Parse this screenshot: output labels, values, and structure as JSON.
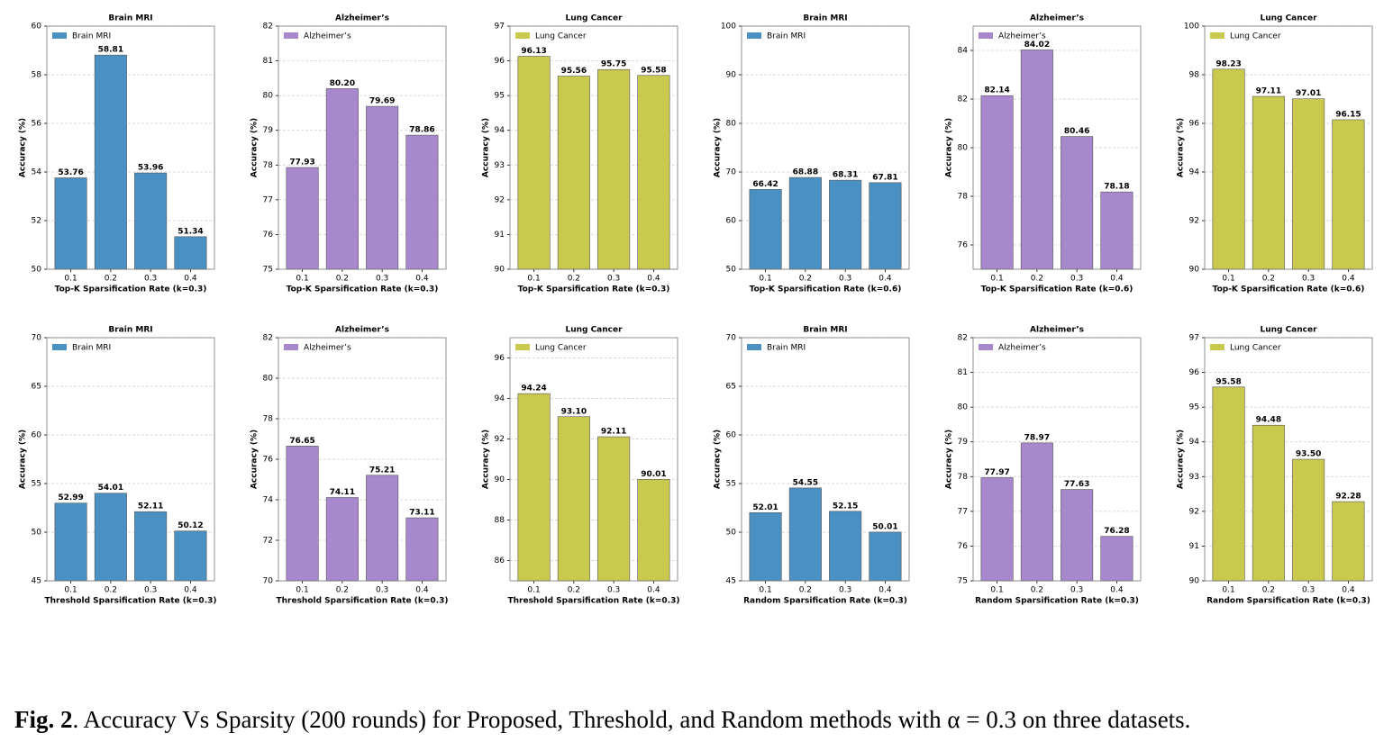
{
  "chart_data": [
    {
      "type": "bar",
      "title": "Brain MRI",
      "xlabel": "Top-K Sparsification Rate (k=0.3)",
      "ylabel": "Accuracy (%)",
      "categories": [
        "0.1",
        "0.2",
        "0.3",
        "0.4"
      ],
      "series": [
        {
          "name": "Brain MRI",
          "color": "#4a90c2",
          "values": [
            53.76,
            58.81,
            53.96,
            51.34
          ],
          "value_labels": [
            "53.76",
            "58.81",
            "53.96",
            "51.34"
          ]
        }
      ],
      "ylim": [
        50,
        60
      ],
      "yticks": [
        50,
        52,
        54,
        56,
        58,
        60
      ],
      "grid": true,
      "legend": "upper left"
    },
    {
      "type": "bar",
      "title": "Alzheimer’s",
      "xlabel": "Top-K Sparsification Rate (k=0.3)",
      "ylabel": "Accuracy (%)",
      "categories": [
        "0.1",
        "0.2",
        "0.3",
        "0.4"
      ],
      "series": [
        {
          "name": "Alzheimer’s",
          "color": "#a888cc",
          "values": [
            77.93,
            80.2,
            79.69,
            78.86
          ],
          "value_labels": [
            "77.93",
            "80.20",
            "79.69",
            "78.86"
          ]
        }
      ],
      "ylim": [
        75,
        82
      ],
      "yticks": [
        75,
        76,
        77,
        78,
        79,
        80,
        81,
        82
      ],
      "grid": true,
      "legend": "upper left"
    },
    {
      "type": "bar",
      "title": "Lung Cancer",
      "xlabel": "Top-K Sparsification Rate (k=0.3)",
      "ylabel": "Accuracy (%)",
      "categories": [
        "0.1",
        "0.2",
        "0.3",
        "0.4"
      ],
      "series": [
        {
          "name": "Lung Cancer",
          "color": "#c9c94e",
          "values": [
            96.13,
            95.56,
            95.75,
            95.58
          ],
          "value_labels": [
            "96.13",
            "95.56",
            "95.75",
            "95.58"
          ]
        }
      ],
      "ylim": [
        90,
        97
      ],
      "yticks": [
        90,
        91,
        92,
        93,
        94,
        95,
        96,
        97
      ],
      "grid": true,
      "legend": "upper left"
    },
    {
      "type": "bar",
      "title": "Brain MRI",
      "xlabel": "Top-K Sparsification Rate (k=0.6)",
      "ylabel": "Accuracy (%)",
      "categories": [
        "0.1",
        "0.2",
        "0.3",
        "0.4"
      ],
      "series": [
        {
          "name": "Brain MRI",
          "color": "#4a90c2",
          "values": [
            66.42,
            68.88,
            68.31,
            67.81
          ],
          "value_labels": [
            "66.42",
            "68.88",
            "68.31",
            "67.81"
          ]
        }
      ],
      "ylim": [
        50,
        100
      ],
      "yticks": [
        50,
        60,
        70,
        80,
        90,
        100
      ],
      "grid": true,
      "legend": "upper left"
    },
    {
      "type": "bar",
      "title": "Alzheimer’s",
      "xlabel": "Top-K Sparsification Rate (k=0.6)",
      "ylabel": "Accuracy (%)",
      "categories": [
        "0.1",
        "0.2",
        "0.3",
        "0.4"
      ],
      "series": [
        {
          "name": "Alzheimer’s",
          "color": "#a888cc",
          "values": [
            82.14,
            84.02,
            80.46,
            78.18
          ],
          "value_labels": [
            "82.14",
            "84.02",
            "80.46",
            "78.18"
          ]
        }
      ],
      "ylim": [
        75,
        85
      ],
      "yticks": [
        76,
        78,
        80,
        82,
        84
      ],
      "grid": true,
      "legend": "upper left"
    },
    {
      "type": "bar",
      "title": "Lung Cancer",
      "xlabel": "Top-K Sparsification Rate (k=0.6)",
      "ylabel": "Accuracy (%)",
      "categories": [
        "0.1",
        "0.2",
        "0.3",
        "0.4"
      ],
      "series": [
        {
          "name": "Lung Cancer",
          "color": "#c9c94e",
          "values": [
            98.23,
            97.11,
            97.01,
            96.15
          ],
          "value_labels": [
            "98.23",
            "97.11",
            "97.01",
            "96.15"
          ]
        }
      ],
      "ylim": [
        90,
        100
      ],
      "yticks": [
        90,
        92,
        94,
        96,
        98,
        100
      ],
      "grid": true,
      "legend": "upper left"
    },
    {
      "type": "bar",
      "title": "Brain MRI",
      "xlabel": "Threshold Sparsification Rate (k=0.3)",
      "ylabel": "Accuracy (%)",
      "categories": [
        "0.1",
        "0.2",
        "0.3",
        "0.4"
      ],
      "series": [
        {
          "name": "Brain MRI",
          "color": "#4a90c2",
          "values": [
            52.99,
            54.01,
            52.11,
            50.12
          ],
          "value_labels": [
            "52.99",
            "54.01",
            "52.11",
            "50.12"
          ]
        }
      ],
      "ylim": [
        45,
        70
      ],
      "yticks": [
        45,
        50,
        55,
        60,
        65,
        70
      ],
      "grid": true,
      "legend": "upper left"
    },
    {
      "type": "bar",
      "title": "Alzheimer’s",
      "xlabel": "Threshold Sparsification Rate (k=0.3)",
      "ylabel": "Accuracy (%)",
      "categories": [
        "0.1",
        "0.2",
        "0.3",
        "0.4"
      ],
      "series": [
        {
          "name": "Alzheimer’s",
          "color": "#a888cc",
          "values": [
            76.65,
            74.11,
            75.21,
            73.11
          ],
          "value_labels": [
            "76.65",
            "74.11",
            "75.21",
            "73.11"
          ]
        }
      ],
      "ylim": [
        70,
        82
      ],
      "yticks": [
        70,
        72,
        74,
        76,
        78,
        80,
        82
      ],
      "grid": true,
      "legend": "upper left"
    },
    {
      "type": "bar",
      "title": "Lung Cancer",
      "xlabel": "Threshold Sparsification Rate (k=0.3)",
      "ylabel": "Accuracy (%)",
      "categories": [
        "0.1",
        "0.2",
        "0.3",
        "0.4"
      ],
      "series": [
        {
          "name": "Lung Cancer",
          "color": "#c9c94e",
          "values": [
            94.24,
            93.1,
            92.11,
            90.01
          ],
          "value_labels": [
            "94.24",
            "93.10",
            "92.11",
            "90.01"
          ]
        }
      ],
      "ylim": [
        85,
        97
      ],
      "yticks": [
        86,
        88,
        90,
        92,
        94,
        96
      ],
      "grid": true,
      "legend": "upper left"
    },
    {
      "type": "bar",
      "title": "Brain MRI",
      "xlabel": "Random Sparsification Rate (k=0.3)",
      "ylabel": "Accuracy (%)",
      "categories": [
        "0.1",
        "0.2",
        "0.3",
        "0.4"
      ],
      "series": [
        {
          "name": "Brain MRI",
          "color": "#4a90c2",
          "values": [
            52.01,
            54.55,
            52.15,
            50.01
          ],
          "value_labels": [
            "52.01",
            "54.55",
            "52.15",
            "50.01"
          ]
        }
      ],
      "ylim": [
        45,
        70
      ],
      "yticks": [
        45,
        50,
        55,
        60,
        65,
        70
      ],
      "grid": true,
      "legend": "upper left"
    },
    {
      "type": "bar",
      "title": "Alzheimer’s",
      "xlabel": "Random Sparsification Rate (k=0.3)",
      "ylabel": "Accuracy (%)",
      "categories": [
        "0.1",
        "0.2",
        "0.3",
        "0.4"
      ],
      "series": [
        {
          "name": "Alzheimer’s",
          "color": "#a888cc",
          "values": [
            77.97,
            78.97,
            77.63,
            76.28
          ],
          "value_labels": [
            "77.97",
            "78.97",
            "77.63",
            "76.28"
          ]
        }
      ],
      "ylim": [
        75,
        82
      ],
      "yticks": [
        75,
        76,
        77,
        78,
        79,
        80,
        81,
        82
      ],
      "grid": true,
      "legend": "upper left"
    },
    {
      "type": "bar",
      "title": "Lung Cancer",
      "xlabel": "Random Sparsification Rate (k=0.3)",
      "ylabel": "Accuracy (%)",
      "categories": [
        "0.1",
        "0.2",
        "0.3",
        "0.4"
      ],
      "series": [
        {
          "name": "Lung Cancer",
          "color": "#c9c94e",
          "values": [
            95.58,
            94.48,
            93.5,
            92.28
          ],
          "value_labels": [
            "95.58",
            "94.48",
            "93.50",
            "92.28"
          ]
        }
      ],
      "ylim": [
        90,
        97
      ],
      "yticks": [
        90,
        91,
        92,
        93,
        94,
        95,
        96,
        97
      ],
      "grid": true,
      "legend": "upper left"
    }
  ],
  "caption": {
    "label": "Fig. 2",
    "text": ". Accuracy Vs Sparsity (200 rounds) for Proposed, Threshold, and Random methods with α = 0.3 on three datasets."
  }
}
